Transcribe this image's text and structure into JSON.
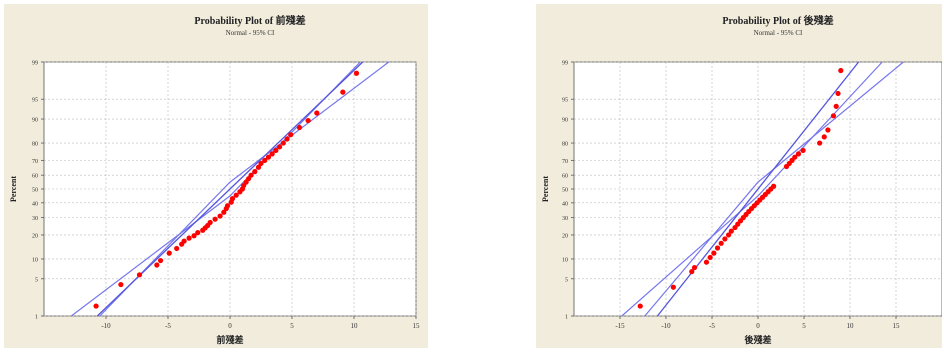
{
  "chart_data": [
    {
      "type": "scatter",
      "title": "Probability Plot of 前殘差",
      "subtitle": "Normal - 95% CI",
      "xlabel": "前殘差",
      "ylabel": "Percent",
      "xlim": [
        -15,
        15
      ],
      "x_ticks": [
        "-10",
        "-5",
        "0",
        "5",
        "10",
        "15"
      ],
      "y_ticks": [
        "1",
        "5",
        "10",
        "20",
        "30",
        "40",
        "50",
        "60",
        "70",
        "80",
        "90",
        "95",
        "99"
      ],
      "y_tick_values": [
        1,
        5,
        10,
        20,
        30,
        40,
        50,
        60,
        70,
        80,
        90,
        95,
        99
      ],
      "y_scale": "normal-probability",
      "grid": true,
      "fit": {
        "mean": 0,
        "sd": 4.6
      },
      "ci": {
        "lower": [
          [
            -12.8,
            1
          ],
          [
            0,
            45
          ],
          [
            10.5,
            99
          ]
        ],
        "upper": [
          [
            -10.5,
            1
          ],
          [
            0,
            55
          ],
          [
            12.8,
            99
          ]
        ]
      },
      "series": [
        {
          "color": "#ff0000",
          "points": [
            [
              -10.8,
              1.6
            ],
            [
              -8.8,
              4.0
            ],
            [
              -7.3,
              5.8
            ],
            [
              -5.9,
              8.2
            ],
            [
              -5.6,
              9.5
            ],
            [
              -4.9,
              12.0
            ],
            [
              -4.3,
              13.8
            ],
            [
              -3.9,
              15.6
            ],
            [
              -3.7,
              17.0
            ],
            [
              -3.3,
              18.4
            ],
            [
              -2.9,
              19.6
            ],
            [
              -2.6,
              21.2
            ],
            [
              -2.2,
              22.5
            ],
            [
              -2.0,
              23.8
            ],
            [
              -1.8,
              25.2
            ],
            [
              -1.6,
              27.0
            ],
            [
              -1.2,
              29.0
            ],
            [
              -0.8,
              31.0
            ],
            [
              -0.5,
              33.5
            ],
            [
              -0.3,
              36.0
            ],
            [
              -0.2,
              38.0
            ],
            [
              0.1,
              40.5
            ],
            [
              0.2,
              43.0
            ],
            [
              0.5,
              45.5
            ],
            [
              0.8,
              48.0
            ],
            [
              1.0,
              50.0
            ],
            [
              1.1,
              52.5
            ],
            [
              1.3,
              55.0
            ],
            [
              1.5,
              57.5
            ],
            [
              1.7,
              60.0
            ],
            [
              2.0,
              62.5
            ],
            [
              2.3,
              65.5
            ],
            [
              2.5,
              68.0
            ],
            [
              2.8,
              70.0
            ],
            [
              3.1,
              72.0
            ],
            [
              3.4,
              74.0
            ],
            [
              3.7,
              76.0
            ],
            [
              4.0,
              78.0
            ],
            [
              4.3,
              80.0
            ],
            [
              4.6,
              82.0
            ],
            [
              4.9,
              84.0
            ],
            [
              5.6,
              87.0
            ],
            [
              6.3,
              89.5
            ],
            [
              7.0,
              91.8
            ],
            [
              9.1,
              96.2
            ],
            [
              10.2,
              98.3
            ]
          ]
        }
      ]
    },
    {
      "type": "scatter",
      "title": "Probability Plot of 後殘差",
      "subtitle": "Normal - 95% CI",
      "xlabel": "後殘差",
      "ylabel": "Percent",
      "xlim": [
        -20,
        20
      ],
      "x_ticks": [
        "-15",
        "-10",
        "-5",
        "0",
        "5",
        "10",
        "15"
      ],
      "y_ticks": [
        "1",
        "5",
        "10",
        "20",
        "30",
        "40",
        "50",
        "60",
        "70",
        "80",
        "90",
        "95",
        "99"
      ],
      "y_tick_values": [
        1,
        5,
        10,
        20,
        30,
        40,
        50,
        60,
        70,
        80,
        90,
        95,
        99
      ],
      "y_scale": "normal-probability",
      "grid": true,
      "fit": {
        "mean": 0,
        "sd": 4.7
      },
      "ci": {
        "lower": [
          [
            -14.8,
            1
          ],
          [
            0,
            45
          ],
          [
            13.5,
            99
          ]
        ],
        "upper": [
          [
            -12.3,
            1
          ],
          [
            0,
            55
          ],
          [
            15.8,
            99
          ]
        ]
      },
      "series": [
        {
          "color": "#ff0000",
          "points": [
            [
              -12.8,
              1.6
            ],
            [
              -9.2,
              3.6
            ],
            [
              -7.2,
              6.5
            ],
            [
              -6.9,
              7.5
            ],
            [
              -5.6,
              9.0
            ],
            [
              -5.2,
              10.5
            ],
            [
              -4.8,
              12.0
            ],
            [
              -4.4,
              14.0
            ],
            [
              -4.0,
              16.0
            ],
            [
              -3.6,
              18.0
            ],
            [
              -3.2,
              20.0
            ],
            [
              -2.9,
              22.0
            ],
            [
              -2.5,
              24.0
            ],
            [
              -2.2,
              26.0
            ],
            [
              -1.9,
              28.0
            ],
            [
              -1.6,
              30.0
            ],
            [
              -1.3,
              32.0
            ],
            [
              -1.0,
              34.0
            ],
            [
              -0.7,
              36.0
            ],
            [
              -0.4,
              38.0
            ],
            [
              -0.1,
              40.0
            ],
            [
              0.2,
              42.0
            ],
            [
              0.5,
              44.0
            ],
            [
              0.8,
              46.0
            ],
            [
              1.1,
              48.0
            ],
            [
              1.4,
              50.0
            ],
            [
              1.7,
              52.0
            ],
            [
              3.1,
              66.0
            ],
            [
              3.4,
              68.0
            ],
            [
              3.7,
              70.0
            ],
            [
              4.0,
              72.0
            ],
            [
              4.4,
              74.0
            ],
            [
              4.9,
              76.0
            ],
            [
              6.7,
              80.0
            ],
            [
              7.2,
              83.0
            ],
            [
              7.6,
              86.0
            ],
            [
              8.2,
              91.0
            ],
            [
              8.5,
              93.5
            ],
            [
              8.7,
              96.0
            ],
            [
              9.0,
              98.5
            ]
          ]
        }
      ]
    }
  ]
}
